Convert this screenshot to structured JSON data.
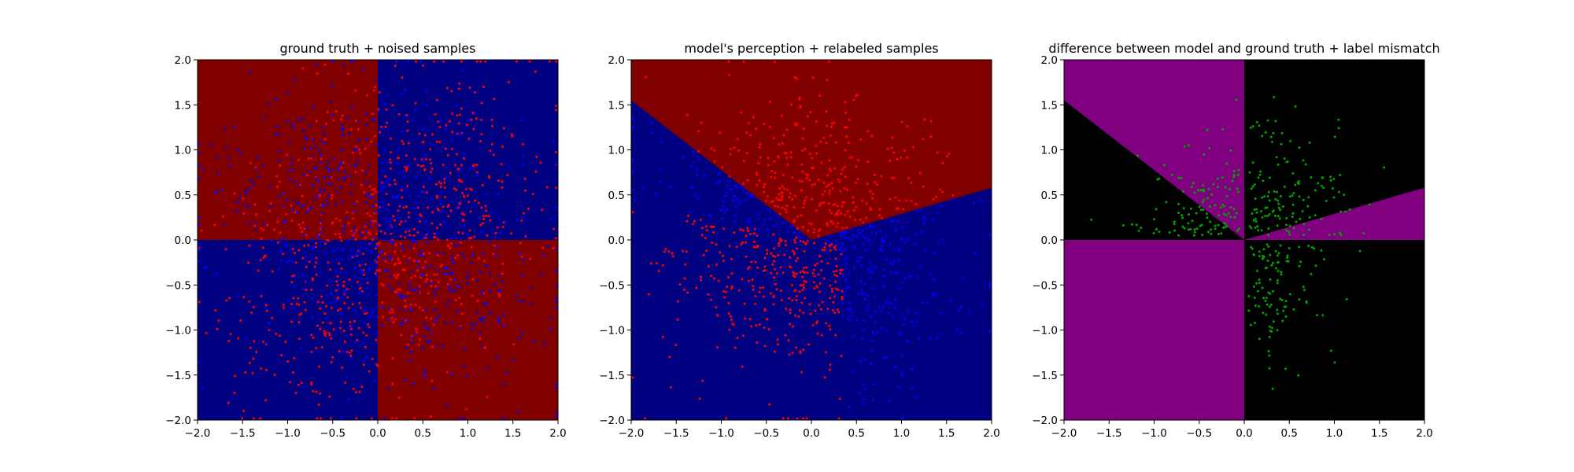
{
  "chart_data": [
    {
      "type": "scatter",
      "title": "ground truth + noised samples",
      "xlim": [
        -2.0,
        2.0
      ],
      "ylim": [
        -2.0,
        2.0
      ],
      "xticks": [
        "−2.0",
        "−1.5",
        "−1.0",
        "−0.5",
        "0.0",
        "0.5",
        "1.0",
        "1.5",
        "2.0"
      ],
      "yticks": [
        "−2.0",
        "−1.5",
        "−1.0",
        "−0.5",
        "0.0",
        "0.5",
        "1.0",
        "1.5",
        "2.0"
      ],
      "grid": false,
      "background_regions": "quadrants: x*y>0 blue (#000080), x*y<0 dark red (#800000)",
      "region_colors": {
        "class_a": "#800000",
        "class_b": "#000080"
      },
      "series": [
        {
          "color": "#ff0000",
          "region": "upper-right quadrant",
          "count": 200
        },
        {
          "color": "#ff0000",
          "region": "lower-left quadrant",
          "count": 200
        },
        {
          "color": "#0000ff",
          "region": "upper-left quadrant",
          "count": 200
        },
        {
          "color": "#0000ff",
          "region": "lower-right quadrant",
          "count": 200
        }
      ]
    },
    {
      "type": "scatter",
      "title": "model's perception + relabeled samples",
      "xlim": [
        -2.0,
        2.0
      ],
      "ylim": [
        -2.0,
        2.0
      ],
      "xticks": [
        "−2.0",
        "−1.5",
        "−1.0",
        "−0.5",
        "0.0",
        "0.5",
        "1.0",
        "1.5",
        "2.0"
      ],
      "yticks": [
        "−2.0",
        "−1.5",
        "−1.0",
        "−0.5",
        "0.0",
        "0.5",
        "1.0",
        "1.5",
        "2.0"
      ],
      "grid": false,
      "decision_boundary": {
        "vertex": [
          0.0,
          0.0
        ],
        "left_ray_end": [
          -2.0,
          1.55
        ],
        "right_ray_end": [
          2.0,
          0.58
        ],
        "above_color": "#800000",
        "below_color": "#000080"
      },
      "series": [
        {
          "color": "#ff0000",
          "region": "upper-center wedge and lower-left",
          "count": 600
        },
        {
          "color": "#0000ff",
          "region": "right side and upper-left",
          "count": 300
        }
      ]
    },
    {
      "type": "scatter",
      "title": "difference between model and ground truth + label mismatch",
      "xlim": [
        -2.0,
        2.0
      ],
      "ylim": [
        -2.0,
        2.0
      ],
      "xticks": [
        "−2.0",
        "−1.5",
        "−1.0",
        "−0.5",
        "0.0",
        "0.5",
        "1.0",
        "1.5",
        "2.0"
      ],
      "yticks": [
        "−2.0",
        "−1.5",
        "−1.0",
        "−0.5",
        "0.0",
        "0.5",
        "1.0",
        "1.5",
        "2.0"
      ],
      "grid": false,
      "region_colors": {
        "mismatch": "#800080",
        "match": "#000000"
      },
      "series": [
        {
          "color": "#00a000",
          "region": "mismatched samples",
          "count": 400
        }
      ]
    }
  ]
}
